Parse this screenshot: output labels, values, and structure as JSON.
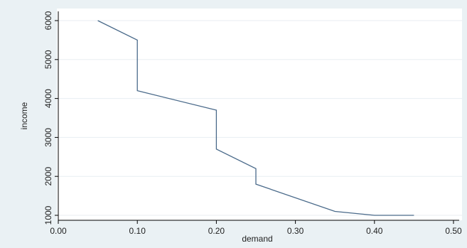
{
  "chart_data": {
    "type": "line",
    "title": "",
    "xlabel": "demand",
    "ylabel": "income",
    "xlim": [
      0.0,
      0.5
    ],
    "ylim": [
      900,
      6100
    ],
    "xticks": [
      0.0,
      0.1,
      0.2,
      0.3,
      0.4,
      0.5
    ],
    "xtick_labels": [
      "0.00",
      "0.10",
      "0.20",
      "0.30",
      "0.40",
      "0.50"
    ],
    "yticks": [
      1000,
      2000,
      3000,
      4000,
      5000,
      6000
    ],
    "ytick_labels": [
      "1000",
      "2000",
      "3000",
      "4000",
      "5000",
      "6000"
    ],
    "grid": "horizontal",
    "legend": "none",
    "series": [
      {
        "x": [
          0.05,
          0.1,
          0.1,
          0.2,
          0.2,
          0.25,
          0.25,
          0.35,
          0.4,
          0.45
        ],
        "y": [
          6000,
          5500,
          4200,
          3700,
          2700,
          2200,
          1800,
          1100,
          1000,
          1000
        ]
      }
    ],
    "colors": {
      "background": "#eaf1f4",
      "plot_area": "#ffffff",
      "line": "#4a6a8a",
      "grid": "#e8eef2",
      "axis": "#000000"
    }
  }
}
